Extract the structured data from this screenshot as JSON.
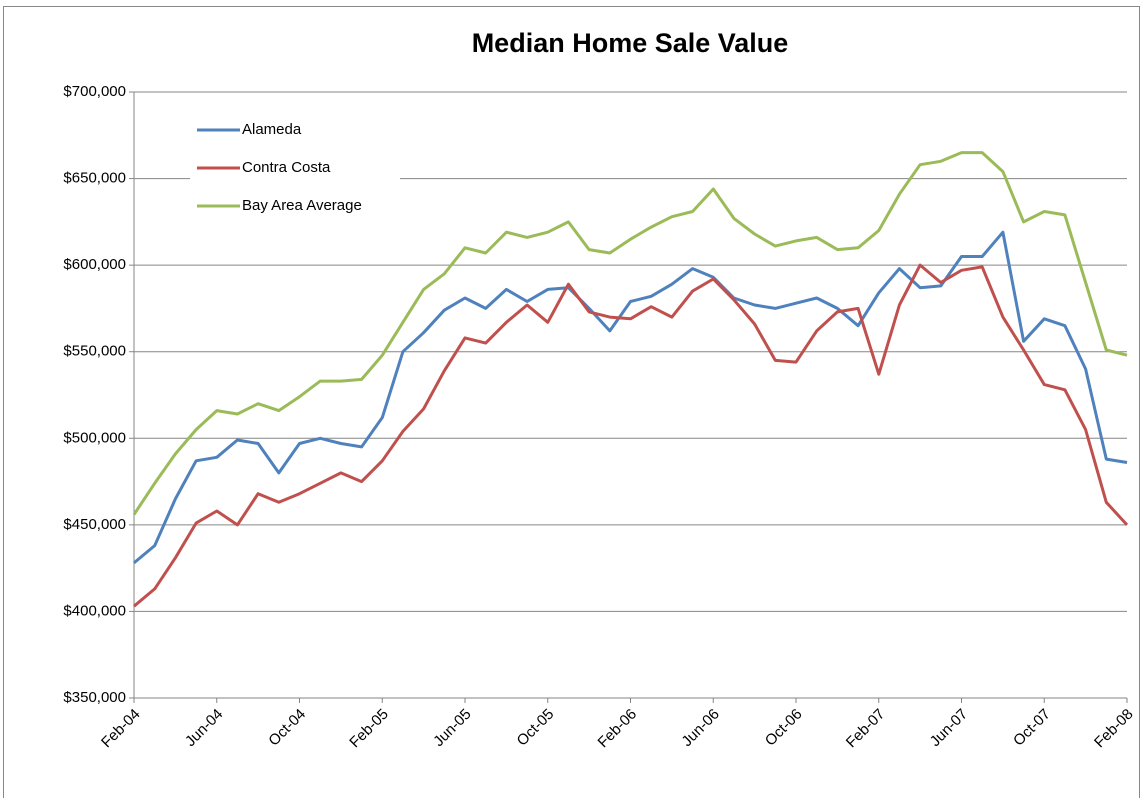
{
  "chart_data": {
    "type": "line",
    "title": "Median Home Sale Value",
    "categories": [
      "Feb-04",
      null,
      null,
      null,
      "Jun-04",
      null,
      null,
      null,
      "Oct-04",
      null,
      null,
      null,
      "Feb-05",
      null,
      null,
      null,
      "Jun-05",
      null,
      null,
      null,
      "Oct-05",
      null,
      null,
      null,
      "Feb-06",
      null,
      null,
      null,
      "Jun-06",
      null,
      null,
      null,
      "Oct-06",
      null,
      null,
      null,
      "Feb-07",
      null,
      null,
      null,
      "Jun-07",
      null,
      null,
      null,
      "Oct-07",
      null,
      null,
      null,
      "Feb-08"
    ],
    "series": [
      {
        "name": "Alameda",
        "color": "#4f81bd",
        "values": [
          428000,
          438000,
          465000,
          487000,
          489000,
          499000,
          497000,
          480000,
          497000,
          500000,
          497000,
          495000,
          512000,
          550000,
          561000,
          574000,
          581000,
          575000,
          586000,
          579000,
          586000,
          587000,
          575000,
          562000,
          579000,
          582000,
          589000,
          598000,
          593000,
          581000,
          577000,
          575000,
          578000,
          581000,
          575000,
          565000,
          584000,
          598000,
          587000,
          588000,
          605000,
          605000,
          619000,
          556000,
          569000,
          565000,
          540000,
          488000,
          486000
        ]
      },
      {
        "name": "Contra Costa",
        "color": "#c0504d",
        "values": [
          403000,
          413000,
          431000,
          451000,
          458000,
          450000,
          468000,
          463000,
          468000,
          474000,
          480000,
          475000,
          487000,
          504000,
          517000,
          539000,
          558000,
          555000,
          567000,
          577000,
          567000,
          589000,
          573000,
          570000,
          569000,
          576000,
          570000,
          585000,
          592000,
          580000,
          566000,
          545000,
          544000,
          562000,
          573000,
          575000,
          537000,
          577000,
          600000,
          590000,
          597000,
          599000,
          570000,
          551000,
          531000,
          528000,
          505000,
          463000,
          450000
        ]
      },
      {
        "name": "Bay Area Average",
        "color": "#9bbb59",
        "values": [
          456000,
          474000,
          491000,
          505000,
          516000,
          514000,
          520000,
          516000,
          524000,
          533000,
          533000,
          534000,
          548000,
          567000,
          586000,
          595000,
          610000,
          607000,
          619000,
          616000,
          619000,
          625000,
          609000,
          607000,
          615000,
          622000,
          628000,
          631000,
          644000,
          627000,
          618000,
          611000,
          614000,
          616000,
          609000,
          610000,
          620000,
          641000,
          658000,
          660000,
          665000,
          665000,
          654000,
          625000,
          631000,
          629000,
          590000,
          551000,
          548000
        ]
      }
    ],
    "ylim": [
      350000,
      700000
    ],
    "yticks": [
      {
        "value": 350000,
        "label": "$350,000"
      },
      {
        "value": 400000,
        "label": "$400,000"
      },
      {
        "value": 450000,
        "label": "$450,000"
      },
      {
        "value": 500000,
        "label": "$500,000"
      },
      {
        "value": 550000,
        "label": "$550,000"
      },
      {
        "value": 600000,
        "label": "$600,000"
      },
      {
        "value": 650000,
        "label": "$650,000"
      },
      {
        "value": 700000,
        "label": "$700,000"
      }
    ],
    "grid": true,
    "legend_position": "upper left"
  }
}
